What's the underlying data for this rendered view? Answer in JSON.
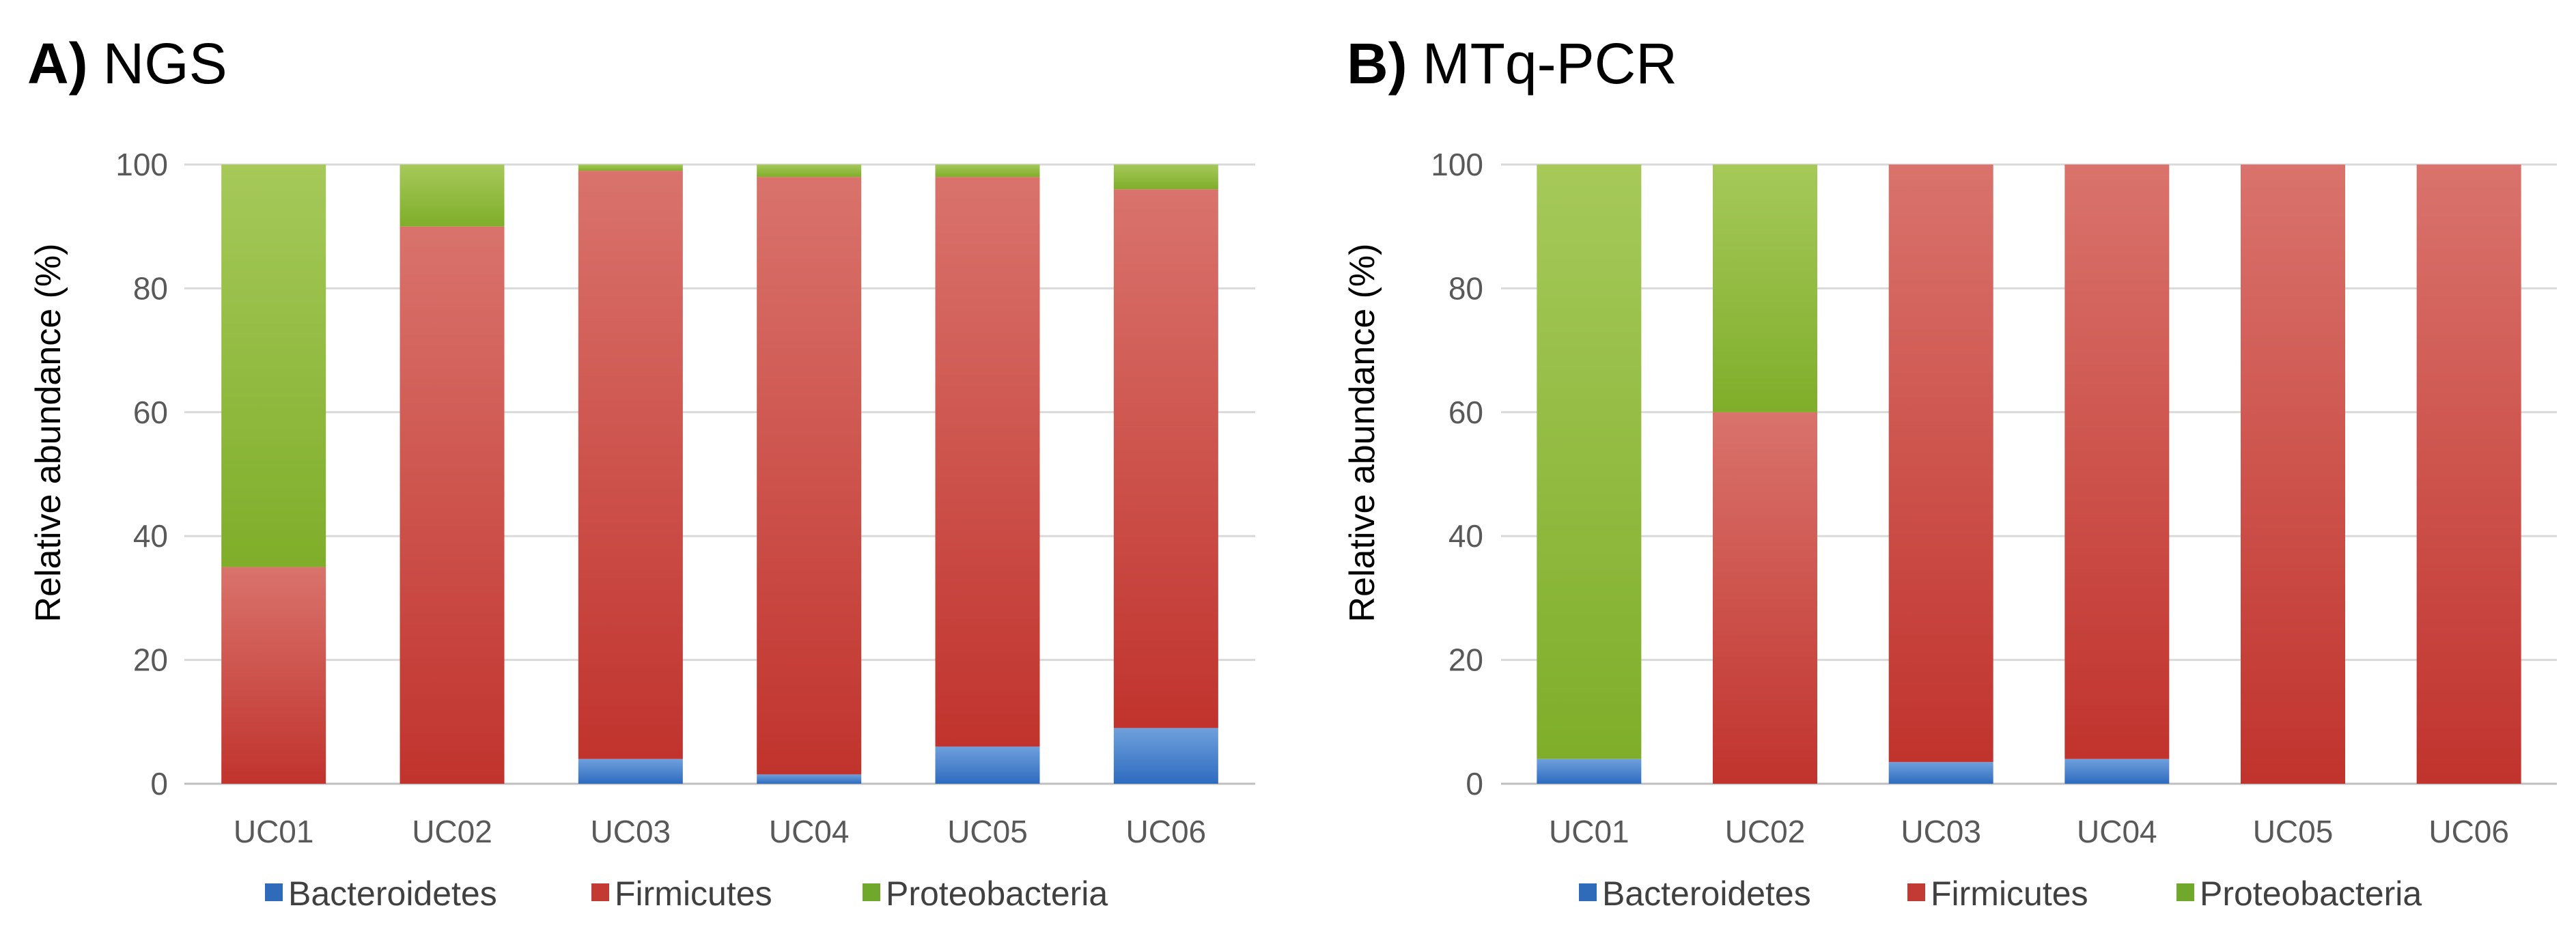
{
  "colors": {
    "Bacteroidetes": [
      "#6fa0dc",
      "#2e6bbf"
    ],
    "Firmicutes": [
      "#d9736c",
      "#c1332d"
    ],
    "Proteobacteria": [
      "#a6c95a",
      "#7fae2a"
    ],
    "legend": {
      "Bacteroidetes": "#2f6bb8",
      "Firmicutes": "#c23a33",
      "Proteobacteria": "#6fa82a"
    }
  },
  "chart_data": [
    {
      "type": "bar",
      "stacked": true,
      "panel_letter": "A)",
      "title": "NGS",
      "xlabel": "",
      "ylabel": "Relative abundance (%)",
      "ylim": [
        0,
        100
      ],
      "yticks": [
        0,
        20,
        40,
        60,
        80,
        100
      ],
      "grid": true,
      "legend_position": "bottom",
      "categories": [
        "UC01",
        "UC02",
        "UC03",
        "UC04",
        "UC05",
        "UC06"
      ],
      "series": [
        {
          "name": "Bacteroidetes",
          "values": [
            0,
            0,
            4,
            1.5,
            6,
            9
          ]
        },
        {
          "name": "Firmicutes",
          "values": [
            35,
            90,
            95,
            96.5,
            92,
            87
          ]
        },
        {
          "name": "Proteobacteria",
          "values": [
            65,
            10,
            1,
            2,
            2,
            4
          ]
        }
      ]
    },
    {
      "type": "bar",
      "stacked": true,
      "panel_letter": "B)",
      "title": "MTq-PCR",
      "xlabel": "",
      "ylabel": "Relative abundance (%)",
      "ylim": [
        0,
        100
      ],
      "yticks": [
        0,
        20,
        40,
        60,
        80,
        100
      ],
      "grid": true,
      "legend_position": "bottom",
      "categories": [
        "UC01",
        "UC02",
        "UC03",
        "UC04",
        "UC05",
        "UC06"
      ],
      "series": [
        {
          "name": "Bacteroidetes",
          "values": [
            4,
            0,
            3.5,
            4,
            0,
            0
          ]
        },
        {
          "name": "Firmicutes",
          "values": [
            0,
            60,
            96.5,
            96,
            100,
            100
          ]
        },
        {
          "name": "Proteobacteria",
          "values": [
            96,
            40,
            0,
            0,
            0,
            0
          ]
        }
      ]
    }
  ]
}
